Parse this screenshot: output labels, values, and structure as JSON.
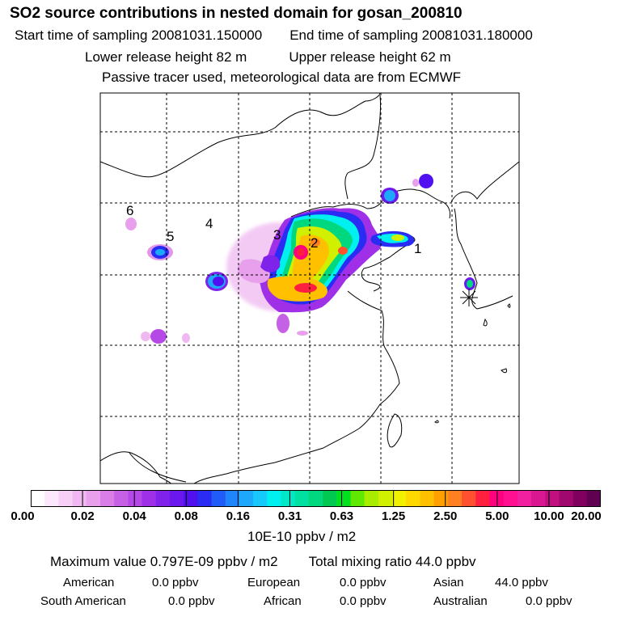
{
  "header": {
    "title": "SO2 source contributions in nested domain for gosan_200810",
    "start_time": "Start time of sampling 20081031.150000",
    "end_time": "End time of sampling 20081031.180000",
    "lower_height": "Lower release height   82 m",
    "upper_height": "Upper release height   62 m",
    "note": "Passive tracer used, meteorological data are from ECMWF"
  },
  "map": {
    "source_labels": [
      "1",
      "2",
      "3",
      "4",
      "5",
      "6"
    ],
    "receptor_marker": "gosan-receptor-star"
  },
  "colorbar": {
    "ticks": [
      "0.00",
      "0.02",
      "0.04",
      "0.08",
      "0.16",
      "0.31",
      "0.63",
      "1.25",
      "2.50",
      "5.00",
      "10.00",
      "20.00"
    ],
    "colors": [
      "#ffffff",
      "#fce8fc",
      "#f7d0f7",
      "#f0b8f0",
      "#e9a0ec",
      "#d97ee6",
      "#c660e4",
      "#b548e6",
      "#a030e8",
      "#7f22ea",
      "#6a18ee",
      "#5010f0",
      "#2a2cf4",
      "#1f5cf8",
      "#1e86fa",
      "#1ea8fb",
      "#17c8fa",
      "#00f0f0",
      "#00e8c8",
      "#00e0a0",
      "#00d880",
      "#00c850",
      "#00e020",
      "#60e800",
      "#a8ec00",
      "#d0f000",
      "#f0f000",
      "#ffd800",
      "#ffc000",
      "#ffa000",
      "#ff8020",
      "#ff5030",
      "#ff2040",
      "#ff0080",
      "#ff1090",
      "#f020a0",
      "#d81890",
      "#c01080",
      "#a00870",
      "#800060",
      "#600050"
    ],
    "unit": "10E-10 ppbv / m2"
  },
  "stats": {
    "maximum": "Maximum value  0.797E-09 ppbv / m2",
    "total": "Total mixing ratio       44.0 ppbv",
    "rows": [
      [
        {
          "label": "American",
          "value": "0.0 ppbv"
        },
        {
          "label": "European",
          "value": "0.0 ppbv"
        },
        {
          "label": "Asian",
          "value": "44.0 ppbv"
        }
      ],
      [
        {
          "label": "South American",
          "value": "0.0 ppbv"
        },
        {
          "label": "African",
          "value": "0.0 ppbv"
        },
        {
          "label": "Australian",
          "value": "0.0 ppbv"
        }
      ]
    ]
  }
}
